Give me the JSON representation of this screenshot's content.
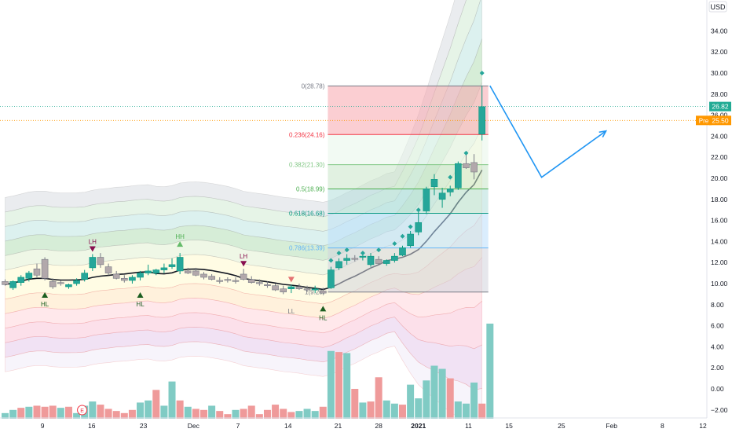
{
  "header": {
    "currency": "USD"
  },
  "chart_data": {
    "type": "candlestick",
    "title": "",
    "xlabel": "",
    "ylabel": "",
    "ylim": [
      -3.4,
      35.0
    ],
    "y_ticks": [
      "34.00",
      "32.00",
      "30.00",
      "28.00",
      "26.00",
      "24.00",
      "22.00",
      "20.00",
      "18.00",
      "16.00",
      "14.00",
      "12.00",
      "10.00",
      "8.00",
      "6.00",
      "4.00",
      "2.00",
      "0.00",
      "−2.00"
    ],
    "x_ticks": [
      {
        "label": "9",
        "i": 4.7
      },
      {
        "label": "16",
        "i": 10.9
      },
      {
        "label": "23",
        "i": 17.4
      },
      {
        "label": "Dec",
        "i": 23.7
      },
      {
        "label": "7",
        "i": 29.3
      },
      {
        "label": "14",
        "i": 35.6
      },
      {
        "label": "21",
        "i": 41.9
      },
      {
        "label": "28",
        "i": 47.0
      },
      {
        "label": "2021",
        "i": 52.0
      },
      {
        "label": "11",
        "i": 58.3
      },
      {
        "label": "15",
        "i": 63.4
      },
      {
        "label": "25",
        "i": 70.0
      },
      {
        "label": "Feb",
        "i": 76.3
      },
      {
        "label": "8",
        "i": 82.7
      },
      {
        "label": "12",
        "i": 87.8
      }
    ],
    "candles": [
      {
        "o": 10.2,
        "h": 10.4,
        "l": 9.8,
        "c": 9.9
      },
      {
        "o": 9.6,
        "h": 10.3,
        "l": 9.4,
        "c": 10.2
      },
      {
        "o": 10.1,
        "h": 10.8,
        "l": 9.8,
        "c": 10.6
      },
      {
        "o": 10.5,
        "h": 11.2,
        "l": 10.2,
        "c": 11.0
      },
      {
        "o": 11.4,
        "h": 11.9,
        "l": 10.6,
        "c": 10.8
      },
      {
        "o": 12.3,
        "h": 12.5,
        "l": 10.3,
        "c": 10.5
      },
      {
        "o": 10.2,
        "h": 10.5,
        "l": 9.5,
        "c": 9.7
      },
      {
        "o": 10.1,
        "h": 10.3,
        "l": 9.8,
        "c": 10.0
      },
      {
        "o": 9.7,
        "h": 10.0,
        "l": 9.5,
        "c": 9.9
      },
      {
        "o": 10.0,
        "h": 10.5,
        "l": 9.8,
        "c": 10.3
      },
      {
        "o": 10.4,
        "h": 11.3,
        "l": 10.2,
        "c": 11.0
      },
      {
        "o": 11.5,
        "h": 12.8,
        "l": 11.2,
        "c": 12.5
      },
      {
        "o": 12.5,
        "h": 12.9,
        "l": 11.5,
        "c": 11.8
      },
      {
        "o": 11.6,
        "h": 11.9,
        "l": 10.8,
        "c": 11.0
      },
      {
        "o": 10.9,
        "h": 11.2,
        "l": 10.4,
        "c": 10.5
      },
      {
        "o": 10.5,
        "h": 10.8,
        "l": 10.1,
        "c": 10.3
      },
      {
        "o": 10.3,
        "h": 10.8,
        "l": 10.0,
        "c": 10.6
      },
      {
        "o": 10.6,
        "h": 11.2,
        "l": 10.3,
        "c": 11.0
      },
      {
        "o": 11.0,
        "h": 11.8,
        "l": 10.8,
        "c": 11.2
      },
      {
        "o": 11.0,
        "h": 11.4,
        "l": 10.8,
        "c": 11.3
      },
      {
        "o": 11.3,
        "h": 11.9,
        "l": 11.0,
        "c": 11.5
      },
      {
        "o": 11.6,
        "h": 12.4,
        "l": 11.4,
        "c": 11.8
      },
      {
        "o": 11.2,
        "h": 12.9,
        "l": 10.9,
        "c": 12.5
      },
      {
        "o": 11.2,
        "h": 11.5,
        "l": 10.9,
        "c": 11.0
      },
      {
        "o": 11.2,
        "h": 11.5,
        "l": 10.7,
        "c": 10.8
      },
      {
        "o": 10.9,
        "h": 11.1,
        "l": 10.4,
        "c": 10.6
      },
      {
        "o": 10.7,
        "h": 10.9,
        "l": 10.3,
        "c": 10.4
      },
      {
        "o": 10.3,
        "h": 10.6,
        "l": 10.0,
        "c": 10.2
      },
      {
        "o": 10.4,
        "h": 10.6,
        "l": 10.1,
        "c": 10.3
      },
      {
        "o": 10.3,
        "h": 10.6,
        "l": 10.0,
        "c": 10.2
      },
      {
        "o": 10.9,
        "h": 11.4,
        "l": 10.3,
        "c": 10.4
      },
      {
        "o": 10.4,
        "h": 10.7,
        "l": 10.0,
        "c": 10.1
      },
      {
        "o": 10.1,
        "h": 10.4,
        "l": 9.8,
        "c": 10.0
      },
      {
        "o": 9.9,
        "h": 10.2,
        "l": 9.6,
        "c": 9.8
      },
      {
        "o": 9.8,
        "h": 10.0,
        "l": 9.3,
        "c": 9.4
      },
      {
        "o": 9.5,
        "h": 9.8,
        "l": 9.0,
        "c": 9.2
      },
      {
        "o": 9.5,
        "h": 9.9,
        "l": 9.1,
        "c": 9.7
      },
      {
        "o": 9.7,
        "h": 10.0,
        "l": 9.4,
        "c": 9.5
      },
      {
        "o": 9.5,
        "h": 9.8,
        "l": 9.2,
        "c": 9.4
      },
      {
        "o": 9.4,
        "h": 9.8,
        "l": 9.1,
        "c": 9.5
      },
      {
        "o": 9.3,
        "h": 9.6,
        "l": 9.0,
        "c": 9.1
      },
      {
        "o": 9.6,
        "h": 11.6,
        "l": 9.5,
        "c": 11.3
      },
      {
        "o": 11.5,
        "h": 12.4,
        "l": 11.3,
        "c": 12.1
      },
      {
        "o": 12.2,
        "h": 12.8,
        "l": 11.8,
        "c": 12.4
      },
      {
        "o": 12.4,
        "h": 12.7,
        "l": 12.1,
        "c": 12.3
      },
      {
        "o": 12.5,
        "h": 12.8,
        "l": 12.2,
        "c": 12.6
      },
      {
        "o": 11.8,
        "h": 12.9,
        "l": 11.6,
        "c": 12.6
      },
      {
        "o": 12.3,
        "h": 12.6,
        "l": 11.8,
        "c": 11.9
      },
      {
        "o": 11.9,
        "h": 12.3,
        "l": 11.7,
        "c": 12.2
      },
      {
        "o": 12.2,
        "h": 12.9,
        "l": 12.0,
        "c": 12.6
      },
      {
        "o": 12.7,
        "h": 13.6,
        "l": 12.6,
        "c": 13.4
      },
      {
        "o": 13.6,
        "h": 15.0,
        "l": 13.4,
        "c": 14.7
      },
      {
        "o": 14.9,
        "h": 16.8,
        "l": 14.6,
        "c": 15.8
      },
      {
        "o": 16.9,
        "h": 19.2,
        "l": 16.6,
        "c": 19.0
      },
      {
        "o": 19.2,
        "h": 20.4,
        "l": 18.4,
        "c": 19.9
      },
      {
        "o": 18.0,
        "h": 19.1,
        "l": 17.2,
        "c": 18.6
      },
      {
        "o": 18.7,
        "h": 19.3,
        "l": 18.3,
        "c": 19.0
      },
      {
        "o": 19.1,
        "h": 21.6,
        "l": 18.9,
        "c": 21.4
      },
      {
        "o": 21.4,
        "h": 22.3,
        "l": 20.9,
        "c": 21.0
      },
      {
        "o": 21.5,
        "h": 22.3,
        "l": 19.9,
        "c": 20.6
      },
      {
        "o": 24.2,
        "h": 28.8,
        "l": 23.6,
        "c": 26.8
      }
    ],
    "volumes": [
      {
        "v": -2.3,
        "up": true
      },
      {
        "v": -2.0,
        "up": true
      },
      {
        "v": -1.8,
        "up": false
      },
      {
        "v": -1.7,
        "up": true
      },
      {
        "v": -1.6,
        "up": false
      },
      {
        "v": -1.7,
        "up": false
      },
      {
        "v": -1.6,
        "up": false
      },
      {
        "v": -1.8,
        "up": true
      },
      {
        "v": -1.7,
        "up": false
      },
      {
        "v": -2.3,
        "up": true
      },
      {
        "v": -1.6,
        "up": true
      },
      {
        "v": -1.2,
        "up": true
      },
      {
        "v": -1.5,
        "up": false
      },
      {
        "v": -1.9,
        "up": false
      },
      {
        "v": -2.1,
        "up": false
      },
      {
        "v": -2.3,
        "up": false
      },
      {
        "v": -2.0,
        "up": false
      },
      {
        "v": -1.3,
        "up": true
      },
      {
        "v": -1.1,
        "up": true
      },
      {
        "v": -0.1,
        "up": false
      },
      {
        "v": -1.6,
        "up": true
      },
      {
        "v": 0.7,
        "up": true
      },
      {
        "v": -1.1,
        "up": false
      },
      {
        "v": -1.7,
        "up": true
      },
      {
        "v": -1.9,
        "up": false
      },
      {
        "v": -2.0,
        "up": false
      },
      {
        "v": -1.6,
        "up": true
      },
      {
        "v": -2.1,
        "up": false
      },
      {
        "v": -2.4,
        "up": false
      },
      {
        "v": -2.0,
        "up": true
      },
      {
        "v": -1.9,
        "up": false
      },
      {
        "v": -1.6,
        "up": false
      },
      {
        "v": -2.4,
        "up": false
      },
      {
        "v": -2.0,
        "up": false
      },
      {
        "v": -1.5,
        "up": false
      },
      {
        "v": -1.9,
        "up": false
      },
      {
        "v": -2.2,
        "up": false
      },
      {
        "v": -2.1,
        "up": true
      },
      {
        "v": -1.9,
        "up": true
      },
      {
        "v": -2.1,
        "up": true
      },
      {
        "v": -1.7,
        "up": false
      },
      {
        "v": 3.6,
        "up": true
      },
      {
        "v": 3.5,
        "up": false
      },
      {
        "v": 3.4,
        "up": true
      },
      {
        "v": 0.0,
        "up": false
      },
      {
        "v": -1.3,
        "up": true
      },
      {
        "v": -1.2,
        "up": false
      },
      {
        "v": 1.1,
        "up": false
      },
      {
        "v": -1.1,
        "up": true
      },
      {
        "v": -1.4,
        "up": true
      },
      {
        "v": -1.5,
        "up": false
      },
      {
        "v": 0.4,
        "up": true
      },
      {
        "v": -0.9,
        "up": true
      },
      {
        "v": 0.8,
        "up": true
      },
      {
        "v": 2.2,
        "up": true
      },
      {
        "v": 1.9,
        "up": true
      },
      {
        "v": 1.0,
        "up": false
      },
      {
        "v": -1.2,
        "up": true
      },
      {
        "v": -1.4,
        "up": true
      },
      {
        "v": 0.6,
        "up": true
      },
      {
        "v": -1.4,
        "up": false
      },
      {
        "v": 6.2,
        "up": true
      }
    ],
    "pivots": [
      {
        "label": "HL",
        "i": 5,
        "kind": "up"
      },
      {
        "label": "LH",
        "i": 11,
        "kind": "down"
      },
      {
        "label": "HL",
        "i": 17,
        "kind": "up"
      },
      {
        "label": "HH",
        "i": 22,
        "kind": "up-hollow"
      },
      {
        "label": "LH",
        "i": 30,
        "kind": "down"
      },
      {
        "label": "LL",
        "i": 36,
        "kind": "down-hollow"
      },
      {
        "label": "HL",
        "i": 40,
        "kind": "up"
      }
    ],
    "markers": [
      {
        "i": 41,
        "y": 12.2
      },
      {
        "i": 42,
        "y": 12.9
      },
      {
        "i": 43,
        "y": 13.2
      },
      {
        "i": 45,
        "y": 12.9
      },
      {
        "i": 47,
        "y": 13.2
      },
      {
        "i": 49,
        "y": 13.8
      },
      {
        "i": 50,
        "y": 14.5
      },
      {
        "i": 51,
        "y": 15.4
      },
      {
        "i": 52,
        "y": 17.0
      },
      {
        "i": 53,
        "y": 18.1
      },
      {
        "i": 54,
        "y": 19.6
      },
      {
        "i": 56,
        "y": 20.1
      },
      {
        "i": 58,
        "y": 22.4
      },
      {
        "i": 60,
        "y": 30.0
      }
    ],
    "fib_levels": [
      {
        "label": "0(28.78)",
        "value": 28.78,
        "color": "#787b86"
      },
      {
        "label": "0.236(24.16)",
        "value": 24.16,
        "color": "#f23645"
      },
      {
        "label": "0.382(21.30)",
        "value": 21.3,
        "color": "#81c784"
      },
      {
        "label": "0.5(18.99)",
        "value": 18.99,
        "color": "#4caf50"
      },
      {
        "label": "0.618(16.68)",
        "value": 16.68,
        "color": "#089981"
      },
      {
        "label": "0.786(13.39)",
        "value": 13.39,
        "color": "#64b5f6"
      },
      {
        "label": "1(9.20)",
        "value": 9.2,
        "color": "#787b86"
      }
    ],
    "price_labels": [
      {
        "text": "26.82",
        "value": 26.82,
        "color": "#22ab94"
      },
      {
        "text": "25.50",
        "value": 25.5,
        "color": "#ff9800",
        "prefix": "Pre"
      }
    ],
    "projection": [
      {
        "i": 61.0,
        "y": 28.8
      },
      {
        "i": 67.5,
        "y": 20.1
      },
      {
        "i": 75.6,
        "y": 24.5
      }
    ],
    "earnings_marker": {
      "label": "E",
      "i": 9
    }
  }
}
